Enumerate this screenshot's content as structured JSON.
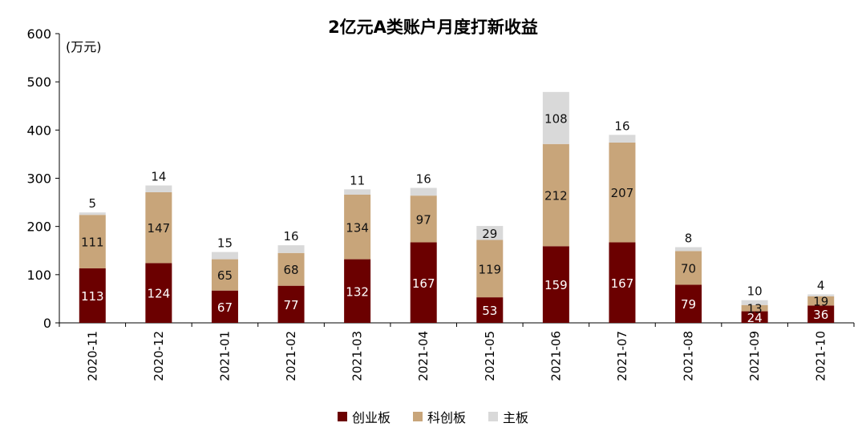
{
  "chart_data": {
    "type": "bar",
    "stacked": true,
    "title": "2亿元A类账户月度打新收益",
    "ylabel": "(万元)",
    "xlabel": "",
    "ylim": [
      0,
      600
    ],
    "yticks": [
      0,
      100,
      200,
      300,
      400,
      500,
      600
    ],
    "categories": [
      "2020-11",
      "2020-12",
      "2021-01",
      "2021-02",
      "2021-03",
      "2021-04",
      "2021-05",
      "2021-06",
      "2021-07",
      "2021-08",
      "2021-09",
      "2021-10"
    ],
    "series": [
      {
        "name": "创业板",
        "color": "#6b0000",
        "label_color": "#ffffff",
        "values": [
          113,
          124,
          67,
          77,
          132,
          167,
          53,
          159,
          167,
          79,
          24,
          36
        ]
      },
      {
        "name": "科创板",
        "color": "#c8a57a",
        "label_color": "#111111",
        "values": [
          111,
          147,
          65,
          68,
          134,
          97,
          119,
          212,
          207,
          70,
          13,
          19
        ]
      },
      {
        "name": "主板",
        "color": "#d9d9d9",
        "label_color": "#111111",
        "values": [
          5,
          14,
          15,
          16,
          11,
          16,
          29,
          108,
          16,
          8,
          10,
          4
        ]
      }
    ],
    "legend_position": "bottom-center",
    "grid": false
  }
}
